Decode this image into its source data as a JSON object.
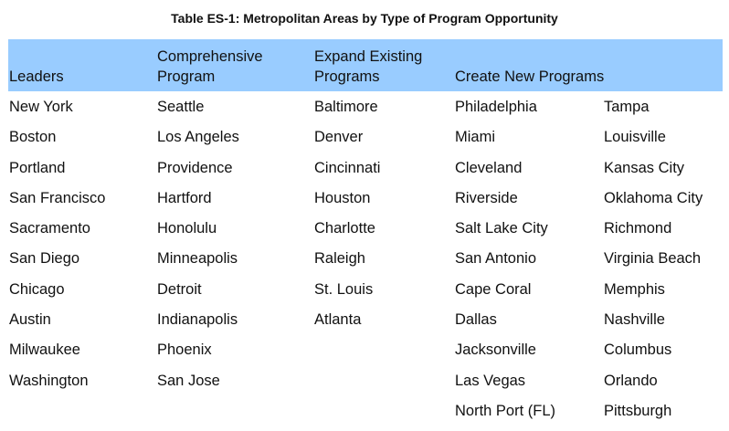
{
  "title": "Table ES-1: Metropolitan Areas by Type of Program Opportunity",
  "headers": [
    "Leaders",
    "Comprehensive Program",
    "Expand Existing Programs",
    "Create New Programs"
  ],
  "columns": {
    "leaders": [
      "New York",
      "Boston",
      "Portland",
      "San Francisco",
      "Sacramento",
      "San Diego",
      "Chicago",
      "Austin",
      "Milwaukee",
      "Washington"
    ],
    "comprehensive": [
      "Seattle",
      "Los Angeles",
      "Providence",
      "Hartford",
      "Honolulu",
      "Minneapolis",
      "Detroit",
      "Indianapolis",
      "Phoenix",
      "San Jose"
    ],
    "expand": [
      "Baltimore",
      "Denver",
      "Cincinnati",
      "Houston",
      "Charlotte",
      "Raleigh",
      "St. Louis",
      "Atlanta"
    ],
    "create_a": [
      "Philadelphia",
      "Miami",
      "Cleveland",
      "Riverside",
      "Salt Lake City",
      "San Antonio",
      "Cape Coral",
      "Dallas",
      "Jacksonville",
      "Las Vegas",
      "North Port (FL)"
    ],
    "create_b": [
      "Tampa",
      "Louisville",
      "Kansas City",
      "Oklahoma City",
      "Richmond",
      "Virginia Beach",
      "Memphis",
      "Nashville",
      "Columbus",
      "Orlando",
      "Pittsburgh"
    ]
  },
  "colors": {
    "header_bg": "#99ccff"
  }
}
